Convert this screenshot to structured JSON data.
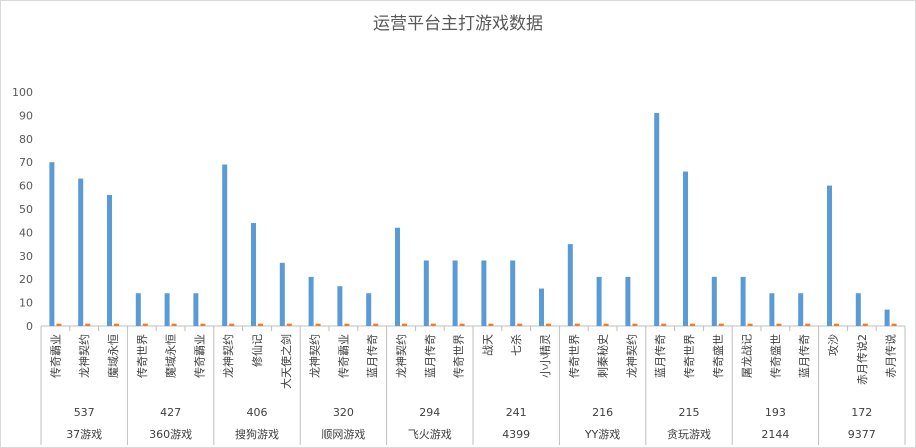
{
  "chart_data": {
    "type": "bar",
    "title": "运营平台主打游戏数据",
    "ylim": [
      0,
      100
    ],
    "yticks": [
      0,
      10,
      20,
      30,
      40,
      50,
      60,
      70,
      80,
      90,
      100
    ],
    "grid": false,
    "legend": "none",
    "colors": {
      "primary": "#5b9bd5",
      "secondary": "#ed7d31",
      "axis": "#bfbfbf"
    },
    "groups": [
      {
        "platform": "37游戏",
        "count": "537",
        "games": [
          "传奇霸业",
          "龙神契约",
          "魔域永恒"
        ],
        "values": [
          70,
          63,
          56
        ],
        "secondary": [
          1,
          1,
          1
        ]
      },
      {
        "platform": "360游戏",
        "count": "427",
        "games": [
          "传奇世界",
          "魔域永恒",
          "传奇霸业"
        ],
        "values": [
          14,
          14,
          14
        ],
        "secondary": [
          1,
          1,
          1
        ]
      },
      {
        "platform": "搜狗游戏",
        "count": "406",
        "games": [
          "龙神契约",
          "修仙记",
          "大天使之剑"
        ],
        "values": [
          69,
          44,
          27
        ],
        "secondary": [
          1,
          1,
          1
        ]
      },
      {
        "platform": "顺网游戏",
        "count": "320",
        "games": [
          "龙神契约",
          "传奇霸业",
          "蓝月传奇"
        ],
        "values": [
          21,
          17,
          14
        ],
        "secondary": [
          1,
          1,
          1
        ]
      },
      {
        "platform": "飞火游戏",
        "count": "294",
        "games": [
          "龙神契约",
          "蓝月传奇",
          "传奇世界"
        ],
        "values": [
          42,
          28,
          28
        ],
        "secondary": [
          1,
          1,
          1
        ]
      },
      {
        "platform": "4399",
        "count": "241",
        "games": [
          "战天",
          "七杀",
          "小小精灵"
        ],
        "values": [
          28,
          28,
          16
        ],
        "secondary": [
          1,
          1,
          1
        ]
      },
      {
        "platform": "YY游戏",
        "count": "216",
        "games": [
          "传奇世界",
          "刺秦秘史",
          "龙神契约"
        ],
        "values": [
          35,
          21,
          21
        ],
        "secondary": [
          1,
          1,
          1
        ]
      },
      {
        "platform": "贪玩游戏",
        "count": "215",
        "games": [
          "蓝月传奇",
          "传奇世界",
          "传奇盛世"
        ],
        "values": [
          91,
          66,
          21
        ],
        "secondary": [
          1,
          1,
          1
        ]
      },
      {
        "platform": "2144",
        "count": "193",
        "games": [
          "屠龙战记",
          "传奇盛世",
          "蓝月传奇"
        ],
        "values": [
          21,
          14,
          14
        ],
        "secondary": [
          1,
          1,
          1
        ]
      },
      {
        "platform": "9377",
        "count": "172",
        "games": [
          "攻沙",
          "赤月传说2",
          "赤月传说"
        ],
        "values": [
          60,
          14,
          7
        ],
        "secondary": [
          1,
          1,
          1
        ]
      }
    ]
  }
}
